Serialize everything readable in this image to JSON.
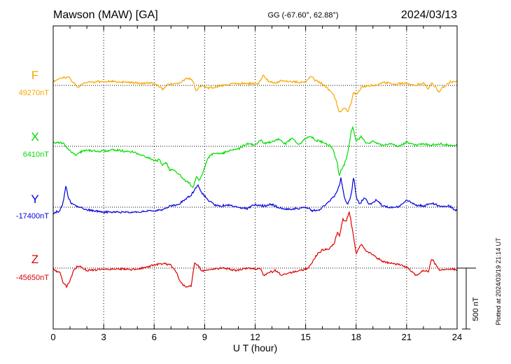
{
  "header": {
    "station": "Mawson (MAW)  [GA]",
    "coords": "GG (-67.60°,  62.88°)",
    "date": "2024/03/13"
  },
  "footer": {
    "plotted": "Plotted at 2024/03/19 21:14 UT"
  },
  "chart_data": {
    "type": "line",
    "xlabel": "U T (hour)",
    "xlim": [
      0,
      24
    ],
    "xticks": [
      0,
      3,
      6,
      9,
      12,
      15,
      18,
      21,
      24
    ],
    "grid": true,
    "scale": {
      "label": "500 nT",
      "value": 500
    },
    "colors": {
      "F": "#f5a800",
      "X": "#00dd00",
      "Y": "#0000dd",
      "Z": "#dd0000"
    },
    "series": [
      {
        "name": "F",
        "baseline_label": "49270nT",
        "x": [
          0,
          0.5,
          0.9,
          1.2,
          1.5,
          1.7,
          1.9,
          2.2,
          2.8,
          3.4,
          4.0,
          4.6,
          5.2,
          5.8,
          6.2,
          6.5,
          6.8,
          7.2,
          7.6,
          7.9,
          8.1,
          8.3,
          8.5,
          8.6,
          8.8,
          9.0,
          9.3,
          9.6,
          10.0,
          10.5,
          11.0,
          11.5,
          12.0,
          12.2,
          12.5,
          12.8,
          13.2,
          13.6,
          14.0,
          14.3,
          14.6,
          15.0,
          15.3,
          15.6,
          15.9,
          16.2,
          16.4,
          16.6,
          16.8,
          17.0,
          17.15,
          17.3,
          17.5,
          17.7,
          17.85,
          18.0,
          18.3,
          18.7,
          19.2,
          19.6,
          20.0,
          20.5,
          21.0,
          21.5,
          22.0,
          22.3,
          22.5,
          22.7,
          22.9,
          23.2,
          23.6,
          24
        ],
        "y": [
          30,
          60,
          70,
          25,
          -20,
          15,
          20,
          25,
          30,
          35,
          25,
          25,
          15,
          20,
          0,
          -30,
          10,
          5,
          25,
          55,
          60,
          40,
          -50,
          -30,
          0,
          -10,
          -20,
          -15,
          0,
          10,
          10,
          20,
          10,
          15,
          80,
          30,
          20,
          40,
          30,
          35,
          20,
          30,
          75,
          40,
          20,
          -10,
          -40,
          -60,
          -120,
          -230,
          -200,
          -180,
          -210,
          -150,
          -50,
          -80,
          -20,
          0,
          0,
          25,
          15,
          10,
          20,
          0,
          20,
          -30,
          20,
          -10,
          -60,
          -10,
          30,
          30
        ]
      },
      {
        "name": "X",
        "baseline_label": "6410nT",
        "x": [
          0,
          0.6,
          1.0,
          1.3,
          1.6,
          1.9,
          2.3,
          3.0,
          3.6,
          4.2,
          4.8,
          5.2,
          5.6,
          6.0,
          6.3,
          6.5,
          6.7,
          6.9,
          7.2,
          7.5,
          7.8,
          8.1,
          8.3,
          8.5,
          8.7,
          9.0,
          9.2,
          9.5,
          10.0,
          10.5,
          11.0,
          11.5,
          12.0,
          12.3,
          12.6,
          13.0,
          13.4,
          13.8,
          14.2,
          14.6,
          15.0,
          15.3,
          15.6,
          15.9,
          16.2,
          16.5,
          16.7,
          16.9,
          17.0,
          17.1,
          17.3,
          17.5,
          17.7,
          17.8,
          18.0,
          18.3,
          18.6,
          19.0,
          19.5,
          20.0,
          20.5,
          21.0,
          21.5,
          22.0,
          22.5,
          23.0,
          23.5,
          24
        ],
        "y": [
          30,
          25,
          -40,
          -70,
          -50,
          -30,
          -40,
          -40,
          -30,
          -40,
          -50,
          -70,
          -90,
          -120,
          -110,
          -160,
          -130,
          -190,
          -200,
          -230,
          -280,
          -300,
          -350,
          -250,
          -280,
          -180,
          -90,
          -60,
          -60,
          -30,
          -20,
          20,
          10,
          50,
          20,
          40,
          60,
          20,
          70,
          10,
          70,
          80,
          50,
          40,
          20,
          0,
          -50,
          -150,
          -250,
          -200,
          -150,
          -60,
          120,
          160,
          40,
          80,
          20,
          40,
          10,
          20,
          0,
          30,
          10,
          20,
          10,
          20,
          10,
          10
        ]
      },
      {
        "name": "Y",
        "baseline_label": "-17400nT",
        "x": [
          0,
          0.4,
          0.6,
          0.75,
          0.9,
          1.1,
          1.5,
          2.0,
          3.0,
          4.0,
          5.0,
          5.8,
          6.5,
          7.0,
          7.5,
          7.8,
          8.0,
          8.2,
          8.4,
          8.6,
          8.8,
          9.2,
          9.6,
          10.0,
          10.5,
          11.0,
          11.5,
          12.0,
          12.5,
          13.0,
          13.5,
          14.0,
          14.5,
          15.0,
          15.4,
          15.8,
          16.2,
          16.5,
          16.8,
          17.0,
          17.1,
          17.3,
          17.5,
          17.7,
          17.85,
          18.0,
          18.2,
          18.5,
          18.8,
          19.2,
          19.6,
          20.0,
          20.5,
          21.0,
          21.5,
          22.0,
          22.5,
          23.0,
          23.5,
          24
        ],
        "y": [
          -50,
          -30,
          40,
          180,
          80,
          30,
          0,
          -20,
          -40,
          -40,
          -40,
          -30,
          -20,
          10,
          30,
          60,
          80,
          100,
          140,
          180,
          120,
          60,
          20,
          10,
          20,
          0,
          -10,
          20,
          10,
          20,
          -10,
          -20,
          -10,
          0,
          -30,
          -20,
          20,
          60,
          110,
          180,
          240,
          80,
          20,
          100,
          250,
          90,
          20,
          80,
          20,
          60,
          10,
          0,
          0,
          60,
          20,
          10,
          30,
          10,
          10,
          -30
        ]
      },
      {
        "name": "Z",
        "baseline_label": "-45650nT",
        "x": [
          0,
          0.4,
          0.6,
          0.8,
          1.0,
          1.2,
          1.5,
          2.0,
          3.0,
          4.0,
          5.0,
          5.8,
          6.2,
          6.6,
          7.0,
          7.3,
          7.6,
          7.9,
          8.2,
          8.4,
          8.6,
          8.8,
          9.0,
          9.5,
          10.0,
          10.5,
          11.0,
          11.5,
          12.0,
          12.3,
          12.5,
          12.8,
          13.2,
          13.6,
          14.0,
          14.5,
          15.0,
          15.3,
          15.6,
          16.0,
          16.4,
          16.7,
          16.9,
          17.0,
          17.2,
          17.4,
          17.6,
          17.8,
          18.0,
          18.3,
          18.6,
          19.0,
          19.5,
          20.0,
          20.5,
          21.0,
          21.3,
          21.6,
          22.0,
          22.3,
          22.5,
          22.7,
          23.0,
          23.5,
          24
        ],
        "y": [
          -10,
          -40,
          -120,
          -150,
          -100,
          -20,
          20,
          -20,
          -10,
          -10,
          -10,
          20,
          30,
          40,
          20,
          -30,
          -120,
          -160,
          -140,
          40,
          20,
          -20,
          -20,
          -10,
          0,
          -10,
          -20,
          0,
          -10,
          0,
          -60,
          -40,
          -20,
          -60,
          -40,
          -20,
          -10,
          20,
          100,
          150,
          160,
          200,
          300,
          250,
          400,
          380,
          460,
          300,
          120,
          200,
          140,
          110,
          60,
          40,
          30,
          10,
          -30,
          -60,
          -20,
          -30,
          80,
          30,
          -20,
          -10,
          -10
        ]
      }
    ]
  }
}
